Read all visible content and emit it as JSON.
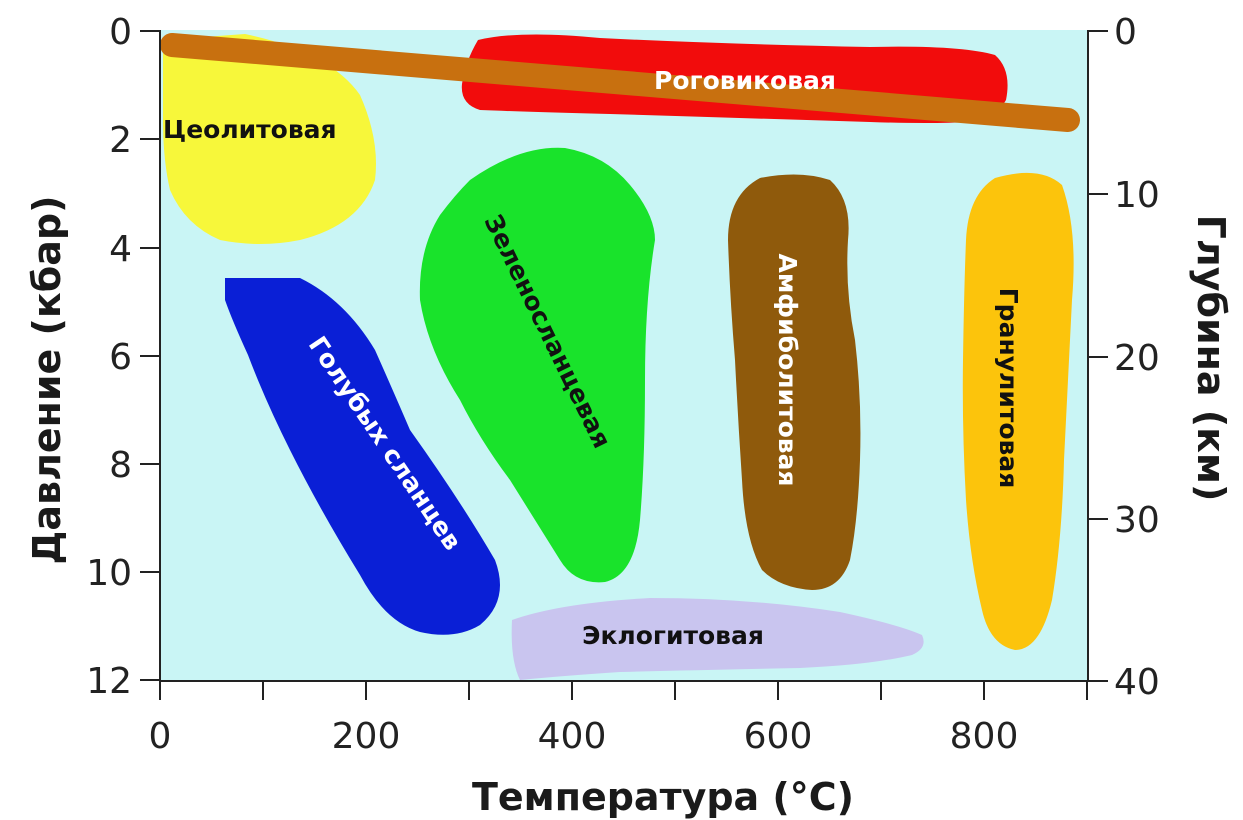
{
  "axes": {
    "x_title": "Температура (°C)",
    "y_left_title": "Давление (кбар)",
    "y_right_title": "Глубина (км)",
    "x_ticks": [
      "0",
      "200",
      "400",
      "600",
      "800"
    ],
    "y_left_ticks": [
      "0",
      "2",
      "4",
      "6",
      "8",
      "10",
      "12"
    ],
    "y_right_ticks": [
      "0",
      "10",
      "20",
      "30",
      "40"
    ]
  },
  "facies": {
    "zeolite": "Цеолитовая",
    "hornfels": "Роговиковая",
    "blueschist": "Голубых сланцев",
    "greenschist": "Зеленосланцевая",
    "amphibolite": "Амфиболитовая",
    "granulite": "Гранулитовая",
    "eclogite": "Эклогитовая"
  },
  "colors": {
    "plot_background": "#c9f5f5",
    "zeolite": "#f7f73a",
    "hornfels": "#f20c0c",
    "geotherm_band": "#c8700f",
    "blueschist": "#0a1fd6",
    "greenschist": "#19e32b",
    "amphibolite": "#8f5a0c",
    "granulite": "#fcc40c",
    "eclogite": "#c9c5ef"
  }
}
